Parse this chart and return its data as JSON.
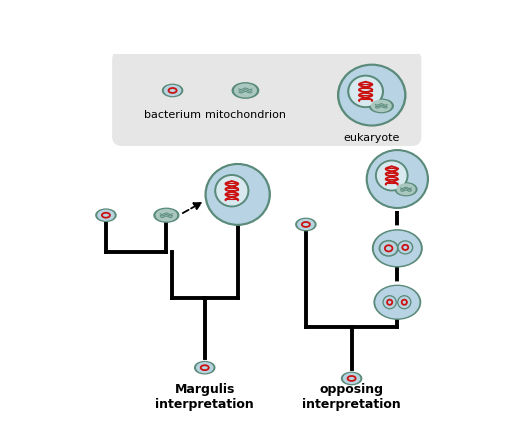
{
  "bg_color": "#ffffff",
  "legend_box_color": "#e6e6e6",
  "cell_border_color": "#5a8a7a",
  "cell_fill_color": "#b8d4e4",
  "nucleus_border_color": "#5a8a7a",
  "nucleus_fill_color": "#d8eaf0",
  "mito_border_color": "#5a8a7a",
  "mito_fill_color": "#aac8c0",
  "bact_border_color": "#5a8a7a",
  "bact_fill_color": "#b8d4e0",
  "dna_color": "#cc1111",
  "tree_color": "#111111",
  "title_left": "Margulis\ninterpretation",
  "title_right": "opposing\ninterpretation",
  "label_bacterium": "bacterium",
  "label_mitochondrion": "mitochondrion",
  "label_eukaryote": "eukaryote",
  "lw": 2.8
}
